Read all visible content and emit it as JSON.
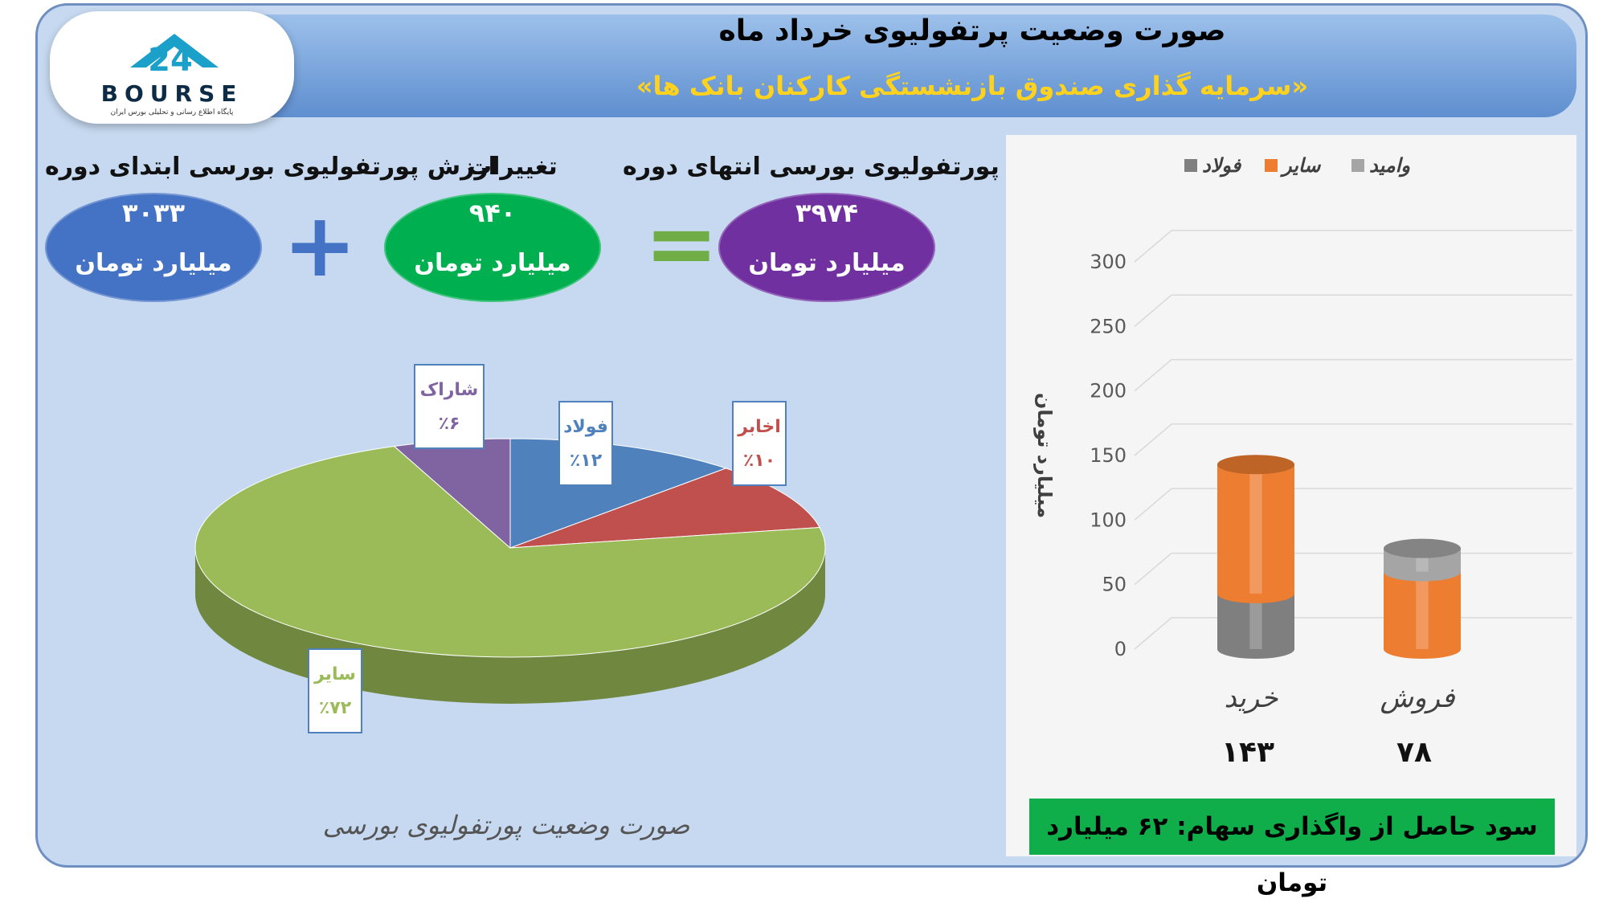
{
  "header": {
    "title": "صورت وضعیت پرتفولیوی خرداد ماه",
    "subtitle": "«سرمایه گذاری صندوق بازنشستگی کارکنان بانک ها»"
  },
  "logo": {
    "brand": "BOURSE",
    "mark": "24",
    "tagline": "پایگاه اطلاع رسانی و تحلیلی بورس ایران"
  },
  "summary": {
    "start": {
      "label": "ارزش پورتفولیوی بورسی ابتدای دوره",
      "value": "۳۰۳۳",
      "unit": "میلیارد تومان",
      "color": "#4472c4"
    },
    "change": {
      "label": "تغییرات",
      "value": "۹۴۰",
      "unit": "میلیارد تومان",
      "color": "#00b050"
    },
    "end": {
      "label": "ارزش پورتفولیوی بورسی انتهای دوره",
      "value": "۳۹۷۴",
      "unit": "میلیارد تومان",
      "color": "#7030a0"
    },
    "plus_symbol": "+",
    "equals_symbol": "=",
    "plus_color": "#4472c4",
    "equals_color": "#70ad47"
  },
  "pie_caption": "صورت وضعیت پورتفولیوی بورسی",
  "profit_text": "سود حاصل از واگذاری سهام: ۶۲ میلیارد تومان",
  "chart_data": [
    {
      "type": "pie",
      "title": "صورت وضعیت پورتفولیوی بورسی",
      "slices": [
        {
          "name": "فولاد",
          "value": 12,
          "label": "٪۱۲",
          "color": "#4f81bd",
          "label_color": "#4f81bd"
        },
        {
          "name": "اخابر",
          "value": 10,
          "label": "٪۱۰",
          "color": "#c0504d",
          "label_color": "#c0504d"
        },
        {
          "name": "سایر",
          "value": 72,
          "label": "٪۷۲",
          "color": "#9bbb59",
          "label_color": "#9bbb59"
        },
        {
          "name": "شاراک",
          "value": 6,
          "label": "٪۶",
          "color": "#8064a2",
          "label_color": "#8064a2"
        }
      ]
    },
    {
      "type": "bar",
      "stacked": true,
      "ylabel": "میلیارد تومان",
      "ylim": [
        0,
        300
      ],
      "yticks": [
        "300",
        "250",
        "200",
        "150",
        "100",
        "50",
        "0"
      ],
      "categories": [
        "خرید",
        "فروش"
      ],
      "totals": [
        "۱۴۳",
        "۷۸"
      ],
      "legend_position": "top",
      "series": [
        {
          "name": "فولاد",
          "color": "#7f7f7f",
          "values": [
            43,
            0
          ]
        },
        {
          "name": "سایر",
          "color": "#ed7d31",
          "values": [
            100,
            60
          ]
        },
        {
          "name": "وامید",
          "color": "#a5a5a5",
          "values": [
            0,
            18
          ]
        }
      ]
    }
  ]
}
